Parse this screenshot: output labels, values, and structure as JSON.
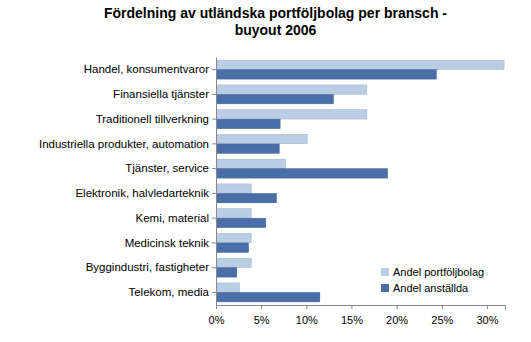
{
  "chart_data": {
    "type": "bar",
    "orientation": "horizontal",
    "title": "Fördelning av utländska portföljbolag per bransch - buyout 2006",
    "categories": [
      "Handel, konsumentvaror",
      "Finansiella tjänster",
      "Traditionell tillverkning",
      "Industriella produkter, automation",
      "Tjänster, service",
      "Elektronik, halvledarteknik",
      "Kemi, material",
      "Medicinsk teknik",
      "Byggindustri, fastigheter",
      "Telekom, media"
    ],
    "series": [
      {
        "name": "Andel portföljbolag",
        "color": "#b9cde5",
        "values": [
          31.9,
          16.7,
          16.7,
          10.1,
          7.7,
          3.9,
          3.9,
          3.9,
          3.9,
          2.6
        ]
      },
      {
        "name": "Andel anställda",
        "color": "#4a6ea8",
        "values": [
          24.4,
          13.0,
          7.1,
          7.0,
          19.0,
          6.7,
          5.5,
          3.6,
          2.3,
          11.5
        ]
      }
    ],
    "xlim": [
      0,
      32
    ],
    "xticks": [
      {
        "value": 0,
        "label": "0%"
      },
      {
        "value": 5,
        "label": "5%"
      },
      {
        "value": 10,
        "label": "10%"
      },
      {
        "value": 15,
        "label": "15%"
      },
      {
        "value": 20,
        "label": "20%"
      },
      {
        "value": 25,
        "label": "25%"
      },
      {
        "value": 30,
        "label": "30%"
      }
    ],
    "grid": false,
    "legend": "bottom-right"
  }
}
